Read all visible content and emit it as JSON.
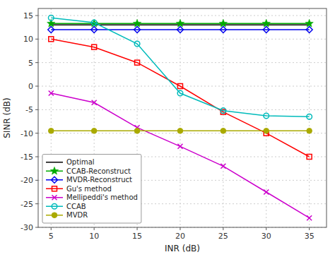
{
  "chart_data": {
    "type": "line",
    "xlabel": "INR (dB)",
    "ylabel": "SINR (dB)",
    "x": [
      5,
      10,
      15,
      20,
      25,
      30,
      35
    ],
    "series": [
      {
        "name": "Optimal",
        "color": "#000000",
        "marker": "none",
        "values": [
          13.0,
          13.0,
          13.0,
          13.0,
          13.0,
          13.0,
          13.0
        ]
      },
      {
        "name": "CCAB-Reconstruct",
        "color": "#00aa00",
        "marker": "star",
        "values": [
          13.3,
          13.3,
          13.3,
          13.3,
          13.3,
          13.3,
          13.3
        ]
      },
      {
        "name": "MVDR-Reconstruct",
        "color": "#0000ee",
        "marker": "diamond-open",
        "values": [
          12.0,
          12.0,
          12.0,
          12.0,
          12.0,
          12.0,
          12.0
        ]
      },
      {
        "name": "Gu's method",
        "color": "#ff0000",
        "marker": "square-open",
        "values": [
          10.0,
          8.3,
          5.0,
          0.0,
          -5.5,
          -10.0,
          -15.0
        ]
      },
      {
        "name": "Mellipeddi's method",
        "color": "#cc00cc",
        "marker": "x",
        "values": [
          -1.5,
          -3.5,
          -8.8,
          -12.8,
          -17.0,
          -22.5,
          -28.0
        ]
      },
      {
        "name": "CCAB",
        "color": "#00bbbb",
        "marker": "circle-open",
        "values": [
          14.5,
          13.5,
          9.0,
          -1.5,
          -5.2,
          -6.3,
          -6.5
        ]
      },
      {
        "name": "MVDR",
        "color": "#aaaa00",
        "marker": "circle",
        "values": [
          -9.5,
          -9.5,
          -9.5,
          -9.5,
          -9.5,
          -9.5,
          -9.5
        ]
      }
    ],
    "xlim": [
      3.5,
      37
    ],
    "ylim": [
      -30,
      16.5
    ],
    "xticks": [
      5,
      10,
      15,
      20,
      25,
      30,
      35
    ],
    "yticks": [
      -30,
      -25,
      -20,
      -15,
      -10,
      -5,
      0,
      5,
      10,
      15
    ],
    "grid": true,
    "legend": "lower left"
  }
}
